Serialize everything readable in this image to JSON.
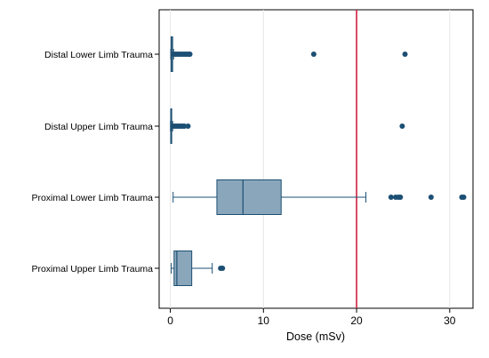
{
  "chart_data": {
    "type": "boxplot",
    "orientation": "horizontal",
    "title": "",
    "xlabel": "Dose (mSv)",
    "ylabel": "",
    "xlim": [
      -1.2,
      32.5
    ],
    "xticks": [
      0,
      10,
      20,
      30
    ],
    "grid": true,
    "reference_line": {
      "x": 20,
      "color": "#d0213f"
    },
    "box_color": "#8aa6bb",
    "stroke_color": "#1c4f73",
    "outlier_color": "#1c4f73",
    "categories": [
      "Distal Lower Limb Trauma",
      "Distal Upper Limb Trauma",
      "Proximal Lower Limb Trauma",
      "Proximal Upper Limb Trauma"
    ],
    "series": [
      {
        "category": "Distal Lower Limb Trauma",
        "whisker_low": 0.05,
        "q1": 0.08,
        "median": 0.12,
        "q3": 0.25,
        "whisker_high": 0.35,
        "outliers": [
          0.4,
          0.6,
          0.8,
          1.0,
          1.2,
          1.4,
          1.6,
          1.8,
          2.0,
          2.1,
          15.4,
          25.2
        ]
      },
      {
        "category": "Distal Upper Limb Trauma",
        "whisker_low": 0.02,
        "q1": 0.05,
        "median": 0.08,
        "q3": 0.15,
        "whisker_high": 0.25,
        "outliers": [
          0.3,
          0.5,
          0.7,
          0.9,
          1.1,
          1.3,
          1.5,
          1.9,
          24.9
        ]
      },
      {
        "category": "Proximal Lower Limb Trauma",
        "whisker_low": 0.3,
        "q1": 5.0,
        "median": 7.8,
        "q3": 11.9,
        "whisker_high": 21.0,
        "outliers": [
          23.7,
          24.2,
          24.5,
          24.7,
          28.0,
          31.3,
          31.5
        ]
      },
      {
        "category": "Proximal Upper Limb Trauma",
        "whisker_low": 0.1,
        "q1": 0.4,
        "median": 0.7,
        "q3": 2.3,
        "whisker_high": 4.5,
        "outliers": [
          5.4,
          5.6
        ]
      }
    ]
  }
}
